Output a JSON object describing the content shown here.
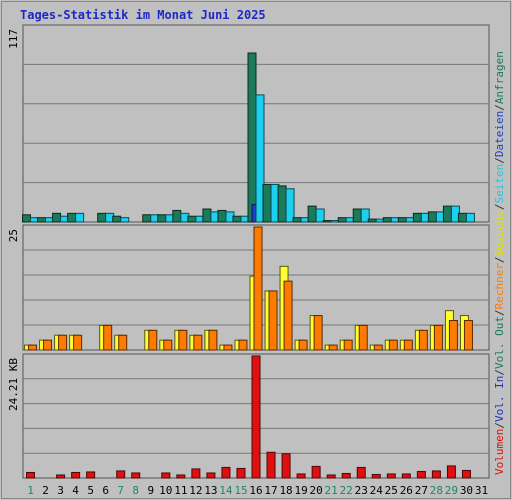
{
  "chart_data": {
    "type": "bar",
    "title": "Tages-Statistik im Monat Juni 2025",
    "days": [
      "1",
      "2",
      "3",
      "4",
      "5",
      "6",
      "7",
      "8",
      "9",
      "10",
      "11",
      "12",
      "13",
      "14",
      "15",
      "16",
      "17",
      "18",
      "19",
      "20",
      "21",
      "22",
      "23",
      "24",
      "25",
      "26",
      "27",
      "28",
      "29",
      "30",
      "31"
    ],
    "weekend_days": [
      1,
      7,
      8,
      14,
      15,
      21,
      22,
      28,
      29
    ],
    "panels": [
      {
        "ymax_label": "117",
        "ymax": 117,
        "series": [
          {
            "name": "Anfragen",
            "color": "#1a7a5a",
            "values": [
              5,
              3,
              6,
              6,
              0,
              6,
              4,
              0,
              5,
              5,
              8,
              4,
              9,
              8,
              4,
              117,
              26,
              25,
              3,
              11,
              1,
              3,
              9,
              2,
              3,
              3,
              6,
              7,
              11,
              6,
              0
            ]
          },
          {
            "name": "Dateien",
            "color": "#1e40c8",
            "values": [
              0,
              0,
              0,
              0,
              0,
              0,
              0,
              0,
              0,
              0,
              0,
              0,
              0,
              0,
              0,
              12,
              0,
              0,
              0,
              0,
              0,
              0,
              0,
              0,
              0,
              0,
              0,
              0,
              0,
              0,
              0
            ]
          },
          {
            "name": "Seiten",
            "color": "#1ed0f0",
            "values": [
              3,
              3,
              4,
              6,
              0,
              6,
              3,
              0,
              5,
              5,
              6,
              4,
              7,
              7,
              4,
              88,
              26,
              23,
              3,
              9,
              1,
              3,
              9,
              2,
              3,
              3,
              6,
              7,
              11,
              6,
              0
            ]
          }
        ]
      },
      {
        "ymax_label": "25",
        "ymax": 25,
        "series": [
          {
            "name": "Besuche",
            "color": "#ffff30",
            "values": [
              1,
              2,
              3,
              3,
              0,
              5,
              3,
              0,
              4,
              2,
              4,
              3,
              4,
              1,
              2,
              15,
              12,
              17,
              2,
              7,
              1,
              2,
              5,
              1,
              2,
              2,
              4,
              5,
              8,
              7,
              0
            ]
          },
          {
            "name": "Rechner",
            "color": "#ff7a00",
            "values": [
              1,
              2,
              3,
              3,
              0,
              5,
              3,
              0,
              4,
              2,
              4,
              3,
              4,
              1,
              2,
              25,
              12,
              14,
              2,
              7,
              1,
              2,
              5,
              1,
              2,
              2,
              4,
              5,
              6,
              6,
              0
            ]
          }
        ]
      },
      {
        "ymax_label": "24.21 KB",
        "ymax": 24.21,
        "series": [
          {
            "name": "Volumen",
            "color": "#e01010",
            "values": [
              1.1,
              0,
              0.6,
              1.1,
              1.2,
              0,
              1.4,
              1.0,
              0,
              1.0,
              0.6,
              1.8,
              1.0,
              2.1,
              1.9,
              24.21,
              5.1,
              4.8,
              0.8,
              2.3,
              0.6,
              0.9,
              2.1,
              0.7,
              0.8,
              0.8,
              1.3,
              1.4,
              2.4,
              1.5,
              0
            ]
          }
        ]
      }
    ],
    "right_legend": [
      {
        "text": "Volumen",
        "color": "#e01010"
      },
      {
        "text": "/",
        "color": "#333333"
      },
      {
        "text": "Vol. In",
        "color": "#2030c0"
      },
      {
        "text": "/",
        "color": "#333333"
      },
      {
        "text": "Vol. Out",
        "color": "#1a7a5a"
      },
      {
        "text": "/",
        "color": "#333333"
      },
      {
        "text": "Rechner",
        "color": "#ff7a00"
      },
      {
        "text": "/",
        "color": "#333333"
      },
      {
        "text": "Besuche",
        "color": "#e0e000"
      },
      {
        "text": "/",
        "color": "#333333"
      },
      {
        "text": "Seiten",
        "color": "#1ec8e8"
      },
      {
        "text": "/",
        "color": "#333333"
      },
      {
        "text": "Dateien",
        "color": "#2040c0"
      },
      {
        "text": "/",
        "color": "#333333"
      },
      {
        "text": "Anfragen",
        "color": "#1a7a5a"
      }
    ],
    "colors": {
      "background": "#c0c0c0",
      "title": "#1e28c8",
      "weekend_label": "#1a8a5a",
      "weekday_label": "#000000"
    }
  }
}
